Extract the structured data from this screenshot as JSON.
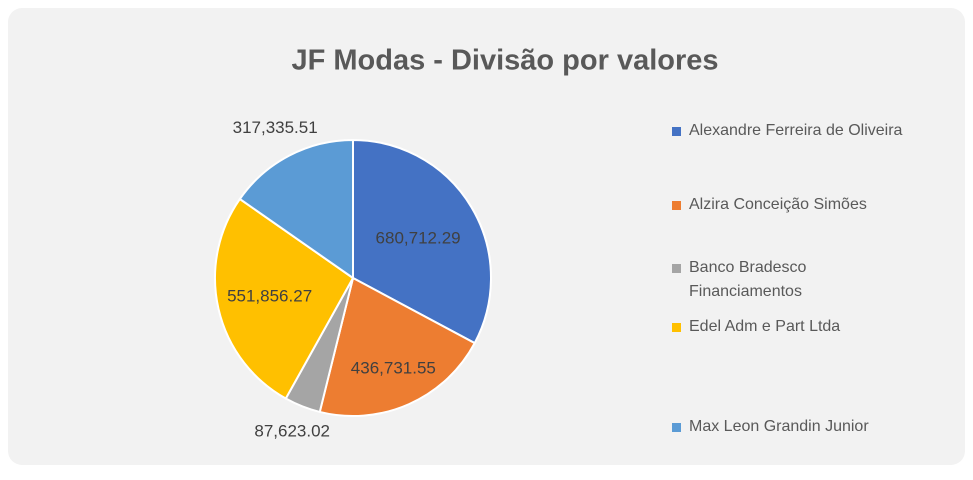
{
  "chart_data": {
    "type": "pie",
    "title": "JF Modas - Divisão por valores",
    "categories": [
      "Alexandre Ferreira de Oliveira",
      "Alzira Conceição Simões",
      "Banco Bradesco Financiamentos",
      "Edel Adm e Part Ltda",
      "Max Leon Grandin Junior"
    ],
    "values": [
      680712.29,
      436731.55,
      87623.02,
      551856.27,
      317335.51
    ],
    "value_labels": [
      "680,712.29",
      "436,731.55",
      "87,623.02",
      "551,856.27",
      "317,335.51"
    ],
    "colors": [
      "#4472c4",
      "#ed7d31",
      "#a5a5a5",
      "#ffc000",
      "#5b9bd5"
    ],
    "legend": "right"
  }
}
